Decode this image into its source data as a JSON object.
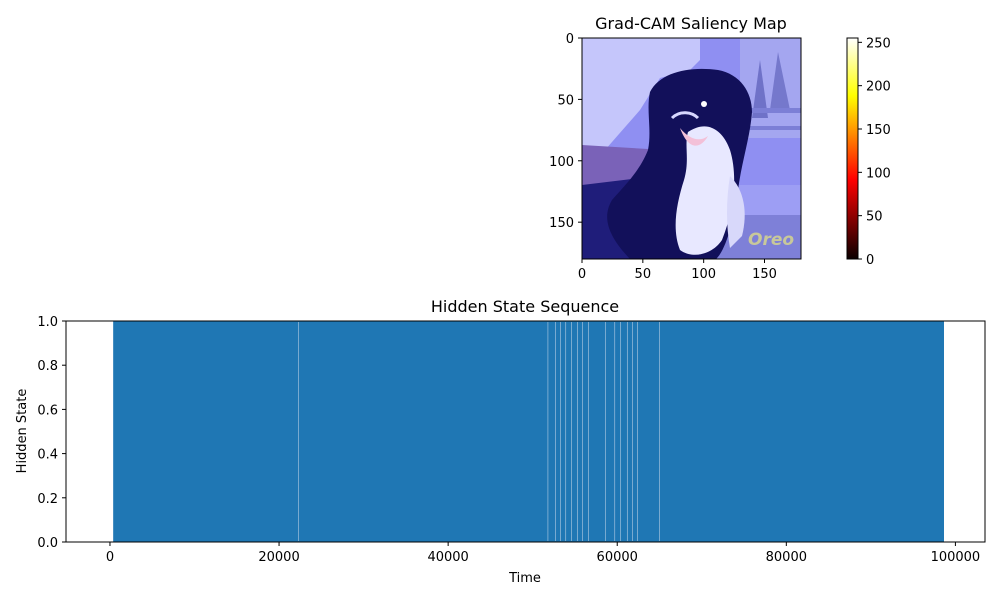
{
  "chart_data": [
    {
      "type": "heatmap",
      "title": "Grad-CAM Saliency Map",
      "xlim": [
        0,
        180
      ],
      "ylim": [
        180,
        0
      ],
      "xticks": [
        0,
        50,
        100,
        150
      ],
      "yticks": [
        0,
        50,
        100,
        150
      ],
      "image_text": "Oreo",
      "colorbar": {
        "colormap": "hot",
        "range": [
          0,
          255
        ],
        "ticks": [
          0,
          50,
          100,
          150,
          200,
          250
        ]
      },
      "colors": {
        "overlay_tint": "#7f7fff"
      }
    },
    {
      "type": "bar",
      "title": "Hidden State Sequence",
      "xlabel": "Time",
      "ylabel": "Hidden State",
      "xlim": [
        -5200,
        103500
      ],
      "ylim": [
        0,
        1
      ],
      "xticks": [
        0,
        20000,
        40000,
        60000,
        80000,
        100000
      ],
      "yticks": [
        0.0,
        0.2,
        0.4,
        0.6,
        0.8,
        1.0
      ],
      "filled_spans": [
        {
          "start": 380,
          "end": 98650,
          "value": 1
        }
      ],
      "gaps_at": [
        22300,
        51800,
        52700,
        53300,
        53900,
        54600,
        55300,
        55900,
        56600,
        58600,
        59700,
        60400,
        61200,
        61800,
        62400,
        65000
      ],
      "colors": {
        "fill": "#1f77b4",
        "gap": "#8fb8d8"
      }
    }
  ]
}
